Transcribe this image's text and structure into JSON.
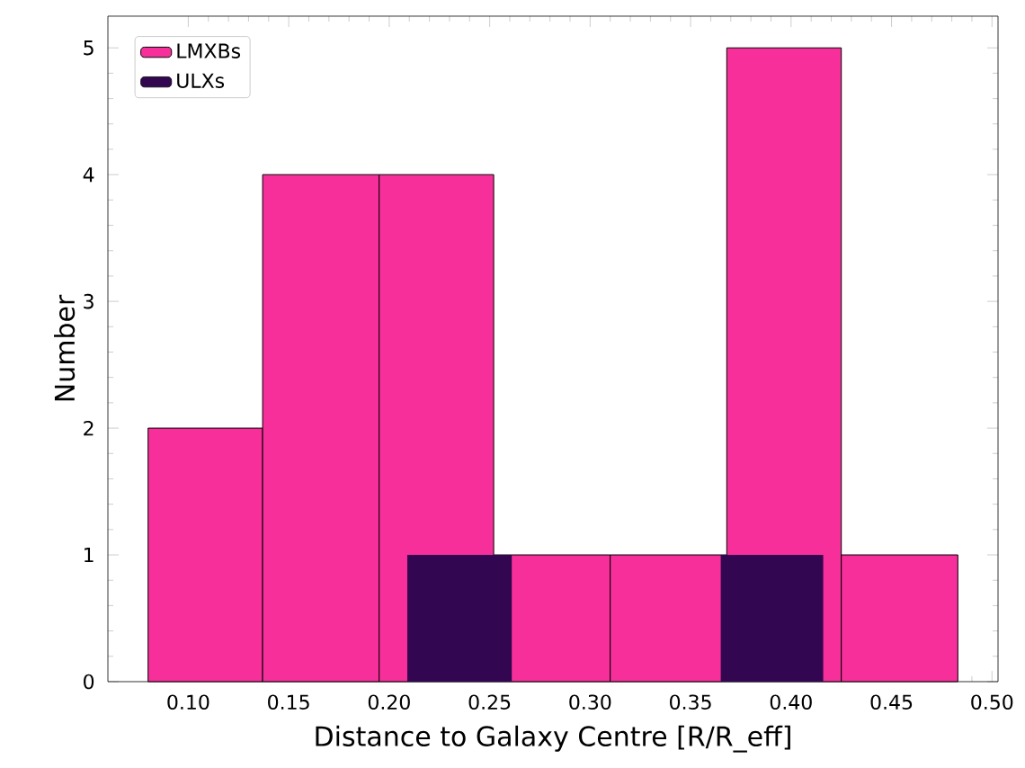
{
  "chart_data": {
    "type": "histogram",
    "xlabel": "Distance to Galaxy Centre [R/R_eff]",
    "ylabel": "Number",
    "bins": [
      0.08,
      0.137,
      0.195,
      0.252,
      0.31,
      0.368,
      0.425,
      0.483
    ],
    "series": [
      {
        "name": "LMXBs",
        "color": "#f72f9a",
        "values": [
          2,
          4,
          4,
          1,
          1,
          5,
          1
        ]
      },
      {
        "name": "ULXs",
        "color": "#320650",
        "bins": [
          0.209,
          0.261,
          0.365,
          0.416
        ],
        "values": [
          1,
          0,
          1
        ]
      }
    ],
    "xlim": [
      0.06,
      0.503
    ],
    "ylim": [
      0,
      5.25
    ],
    "xticks": [
      {
        "value": 0.1,
        "label": "0.10"
      },
      0.15,
      {
        "value": 0.2,
        "label": "0.20"
      },
      0.25,
      {
        "value": 0.3,
        "label": "0.30"
      },
      0.35,
      {
        "value": 0.4,
        "label": "0.40"
      },
      0.45,
      {
        "value": 0.5,
        "label": "0.50"
      }
    ],
    "yticks": [
      0,
      1,
      2,
      3,
      4,
      5
    ],
    "legend": "top left",
    "grid": false
  }
}
